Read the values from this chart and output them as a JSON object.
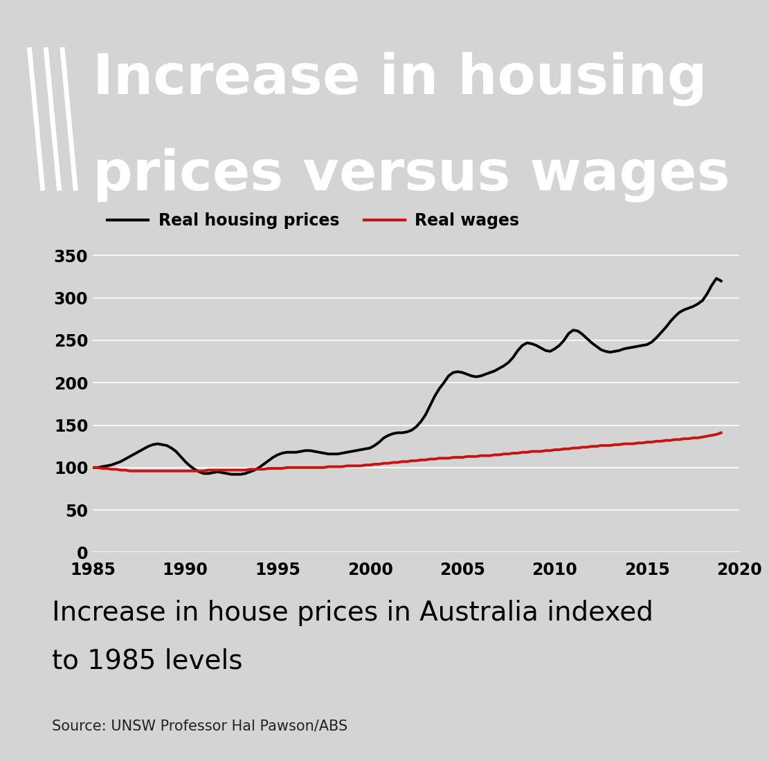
{
  "title_line1": "Increase in housing",
  "title_line2": "prices versus wages",
  "subtitle_line1": "Increase in house prices in Australia indexed",
  "subtitle_line2": "to 1985 levels",
  "source": "Source: UNSW Professor Hal Pawson/ABS",
  "legend_housing": "Real housing prices",
  "legend_wages": "Real wages",
  "header_bg": "#cc2222",
  "chart_bg": "#d4d4d4",
  "housing_color": "#000000",
  "wages_color": "#cc1111",
  "ylim": [
    0,
    370
  ],
  "yticks": [
    0,
    50,
    100,
    150,
    200,
    250,
    300,
    350
  ],
  "xlim": [
    1985,
    2020
  ],
  "xticks": [
    1985,
    1990,
    1995,
    2000,
    2005,
    2010,
    2015,
    2020
  ],
  "housing_prices_years": [
    1985,
    1985.25,
    1985.5,
    1985.75,
    1986,
    1986.25,
    1986.5,
    1986.75,
    1987,
    1987.25,
    1987.5,
    1987.75,
    1988,
    1988.25,
    1988.5,
    1988.75,
    1989,
    1989.25,
    1989.5,
    1989.75,
    1990,
    1990.25,
    1990.5,
    1990.75,
    1991,
    1991.25,
    1991.5,
    1991.75,
    1992,
    1992.25,
    1992.5,
    1992.75,
    1993,
    1993.25,
    1993.5,
    1993.75,
    1994,
    1994.25,
    1994.5,
    1994.75,
    1995,
    1995.25,
    1995.5,
    1995.75,
    1996,
    1996.25,
    1996.5,
    1996.75,
    1997,
    1997.25,
    1997.5,
    1997.75,
    1998,
    1998.25,
    1998.5,
    1998.75,
    1999,
    1999.25,
    1999.5,
    1999.75,
    2000,
    2000.25,
    2000.5,
    2000.75,
    2001,
    2001.25,
    2001.5,
    2001.75,
    2002,
    2002.25,
    2002.5,
    2002.75,
    2003,
    2003.25,
    2003.5,
    2003.75,
    2004,
    2004.25,
    2004.5,
    2004.75,
    2005,
    2005.25,
    2005.5,
    2005.75,
    2006,
    2006.25,
    2006.5,
    2006.75,
    2007,
    2007.25,
    2007.5,
    2007.75,
    2008,
    2008.25,
    2008.5,
    2008.75,
    2009,
    2009.25,
    2009.5,
    2009.75,
    2010,
    2010.25,
    2010.5,
    2010.75,
    2011,
    2011.25,
    2011.5,
    2011.75,
    2012,
    2012.25,
    2012.5,
    2012.75,
    2013,
    2013.25,
    2013.5,
    2013.75,
    2014,
    2014.25,
    2014.5,
    2014.75,
    2015,
    2015.25,
    2015.5,
    2015.75,
    2016,
    2016.25,
    2016.5,
    2016.75,
    2017,
    2017.25,
    2017.5,
    2017.75,
    2018,
    2018.25,
    2018.5,
    2018.75,
    2019
  ],
  "housing_prices_values": [
    100,
    100,
    101,
    102,
    103,
    105,
    107,
    110,
    113,
    116,
    119,
    122,
    125,
    127,
    128,
    127,
    126,
    123,
    119,
    113,
    107,
    102,
    98,
    95,
    93,
    93,
    94,
    95,
    94,
    93,
    92,
    92,
    92,
    93,
    95,
    97,
    100,
    104,
    108,
    112,
    115,
    117,
    118,
    118,
    118,
    119,
    120,
    120,
    119,
    118,
    117,
    116,
    116,
    116,
    117,
    118,
    119,
    120,
    121,
    122,
    123,
    126,
    130,
    135,
    138,
    140,
    141,
    141,
    142,
    144,
    148,
    154,
    162,
    173,
    184,
    193,
    200,
    208,
    212,
    213,
    212,
    210,
    208,
    207,
    208,
    210,
    212,
    214,
    217,
    220,
    224,
    230,
    238,
    244,
    247,
    246,
    244,
    241,
    238,
    237,
    240,
    244,
    250,
    258,
    262,
    261,
    257,
    252,
    247,
    243,
    239,
    237,
    236,
    237,
    238,
    240,
    241,
    242,
    243,
    244,
    245,
    248,
    253,
    259,
    265,
    272,
    278,
    283,
    286,
    288,
    290,
    293,
    297,
    305,
    315,
    323,
    320
  ],
  "wages_years": [
    1985,
    1985.25,
    1985.5,
    1985.75,
    1986,
    1986.25,
    1986.5,
    1986.75,
    1987,
    1987.25,
    1987.5,
    1987.75,
    1988,
    1988.25,
    1988.5,
    1988.75,
    1989,
    1989.25,
    1989.5,
    1989.75,
    1990,
    1990.25,
    1990.5,
    1990.75,
    1991,
    1991.25,
    1991.5,
    1991.75,
    1992,
    1992.25,
    1992.5,
    1992.75,
    1993,
    1993.25,
    1993.5,
    1993.75,
    1994,
    1994.25,
    1994.5,
    1994.75,
    1995,
    1995.25,
    1995.5,
    1995.75,
    1996,
    1996.25,
    1996.5,
    1996.75,
    1997,
    1997.25,
    1997.5,
    1997.75,
    1998,
    1998.25,
    1998.5,
    1998.75,
    1999,
    1999.25,
    1999.5,
    1999.75,
    2000,
    2000.25,
    2000.5,
    2000.75,
    2001,
    2001.25,
    2001.5,
    2001.75,
    2002,
    2002.25,
    2002.5,
    2002.75,
    2003,
    2003.25,
    2003.5,
    2003.75,
    2004,
    2004.25,
    2004.5,
    2004.75,
    2005,
    2005.25,
    2005.5,
    2005.75,
    2006,
    2006.25,
    2006.5,
    2006.75,
    2007,
    2007.25,
    2007.5,
    2007.75,
    2008,
    2008.25,
    2008.5,
    2008.75,
    2009,
    2009.25,
    2009.5,
    2009.75,
    2010,
    2010.25,
    2010.5,
    2010.75,
    2011,
    2011.25,
    2011.5,
    2011.75,
    2012,
    2012.25,
    2012.5,
    2012.75,
    2013,
    2013.25,
    2013.5,
    2013.75,
    2014,
    2014.25,
    2014.5,
    2014.75,
    2015,
    2015.25,
    2015.5,
    2015.75,
    2016,
    2016.25,
    2016.5,
    2016.75,
    2017,
    2017.25,
    2017.5,
    2017.75,
    2018,
    2018.25,
    2018.5,
    2018.75,
    2019
  ],
  "wages_values": [
    100,
    100,
    99,
    99,
    98,
    98,
    97,
    97,
    96,
    96,
    96,
    96,
    96,
    96,
    96,
    96,
    96,
    96,
    96,
    96,
    96,
    96,
    96,
    96,
    96,
    97,
    97,
    97,
    97,
    97,
    97,
    97,
    97,
    97,
    98,
    98,
    98,
    98,
    99,
    99,
    99,
    99,
    100,
    100,
    100,
    100,
    100,
    100,
    100,
    100,
    100,
    101,
    101,
    101,
    101,
    102,
    102,
    102,
    102,
    103,
    103,
    104,
    104,
    105,
    105,
    106,
    106,
    107,
    107,
    108,
    108,
    109,
    109,
    110,
    110,
    111,
    111,
    111,
    112,
    112,
    112,
    113,
    113,
    113,
    114,
    114,
    114,
    115,
    115,
    116,
    116,
    117,
    117,
    118,
    118,
    119,
    119,
    119,
    120,
    120,
    121,
    121,
    122,
    122,
    123,
    123,
    124,
    124,
    125,
    125,
    126,
    126,
    126,
    127,
    127,
    128,
    128,
    128,
    129,
    129,
    130,
    130,
    131,
    131,
    132,
    132,
    133,
    133,
    134,
    134,
    135,
    135,
    136,
    137,
    138,
    139,
    141
  ]
}
